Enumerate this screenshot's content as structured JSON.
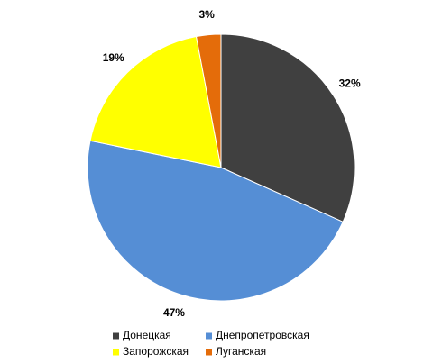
{
  "chart_data": {
    "type": "pie",
    "categories": [
      "Донецкая",
      "Днепропетровская",
      "Запорожская",
      "Луганская"
    ],
    "values": [
      32,
      47,
      19,
      3
    ],
    "value_labels": [
      "32%",
      "47%",
      "19%",
      "3%"
    ],
    "colors": [
      "#404040",
      "#558ed5",
      "#ffff00",
      "#e46c0a"
    ],
    "legend": "bottom"
  }
}
